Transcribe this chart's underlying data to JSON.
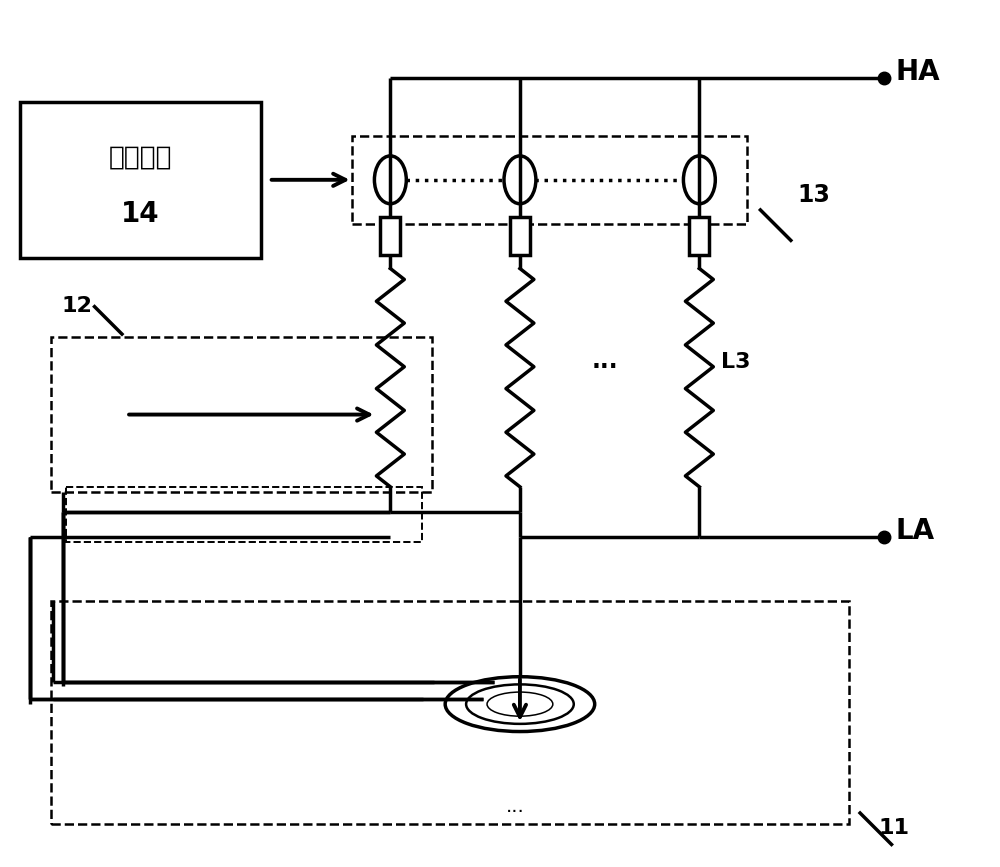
{
  "bg_color": "#ffffff",
  "line_color": "#000000",
  "text_HA": "HA",
  "text_LA": "LA",
  "text_13": "13",
  "text_12": "12",
  "text_11": "11",
  "text_14_line1": "分析模块",
  "text_14_line2": "14",
  "text_L3": "L3",
  "text_dots": "...",
  "figsize": [
    10.0,
    8.67
  ],
  "dpi": 100
}
